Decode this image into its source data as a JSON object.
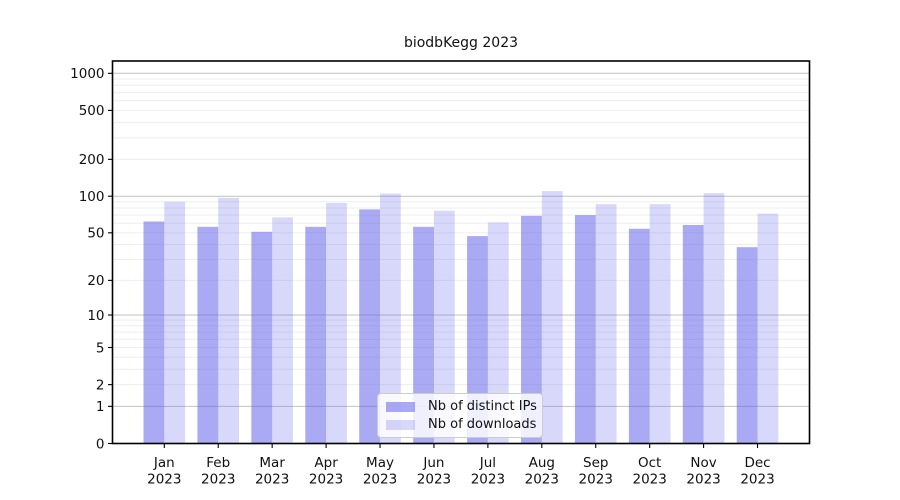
{
  "colors": {
    "background": "#ffffff",
    "bar_distinct_ips": "rgba(100,100,235,0.55)",
    "bar_downloads": "rgba(100,100,235,0.25)",
    "grid_major": "#c2c2c2",
    "grid_minor": "#ededed",
    "axis_spine": "#000000",
    "text": "#111111",
    "legend_border": "#cccccc",
    "legend_background": "rgba(255,255,255,0.82)"
  },
  "chart_data": {
    "type": "bar",
    "title": "biodbKegg 2023",
    "xlabel": "",
    "ylabel": "",
    "yscale": "log1p",
    "ylim": [
      0,
      1260
    ],
    "yticks": [
      1000,
      500,
      200,
      100,
      50,
      20,
      10,
      5,
      2,
      1,
      0
    ],
    "grid": "horizontal: light minor lines at 2-9 of each decade, darker major lines at 1, 10, 100, 1000",
    "legend_position": "inside bottom-center",
    "year": "2023",
    "categories": [
      "Jan",
      "Feb",
      "Mar",
      "Apr",
      "May",
      "Jun",
      "Jul",
      "Aug",
      "Sep",
      "Oct",
      "Nov",
      "Dec"
    ],
    "series": [
      {
        "name": "Nb of distinct IPs",
        "color": "rgba(100,100,235,0.55)",
        "values": [
          62,
          56,
          51,
          56,
          78,
          56,
          47,
          69,
          70,
          54,
          58,
          38
        ]
      },
      {
        "name": "Nb of downloads",
        "color": "rgba(100,100,235,0.25)",
        "values": [
          90,
          97,
          67,
          88,
          105,
          76,
          61,
          110,
          86,
          86,
          106,
          72
        ]
      }
    ]
  }
}
